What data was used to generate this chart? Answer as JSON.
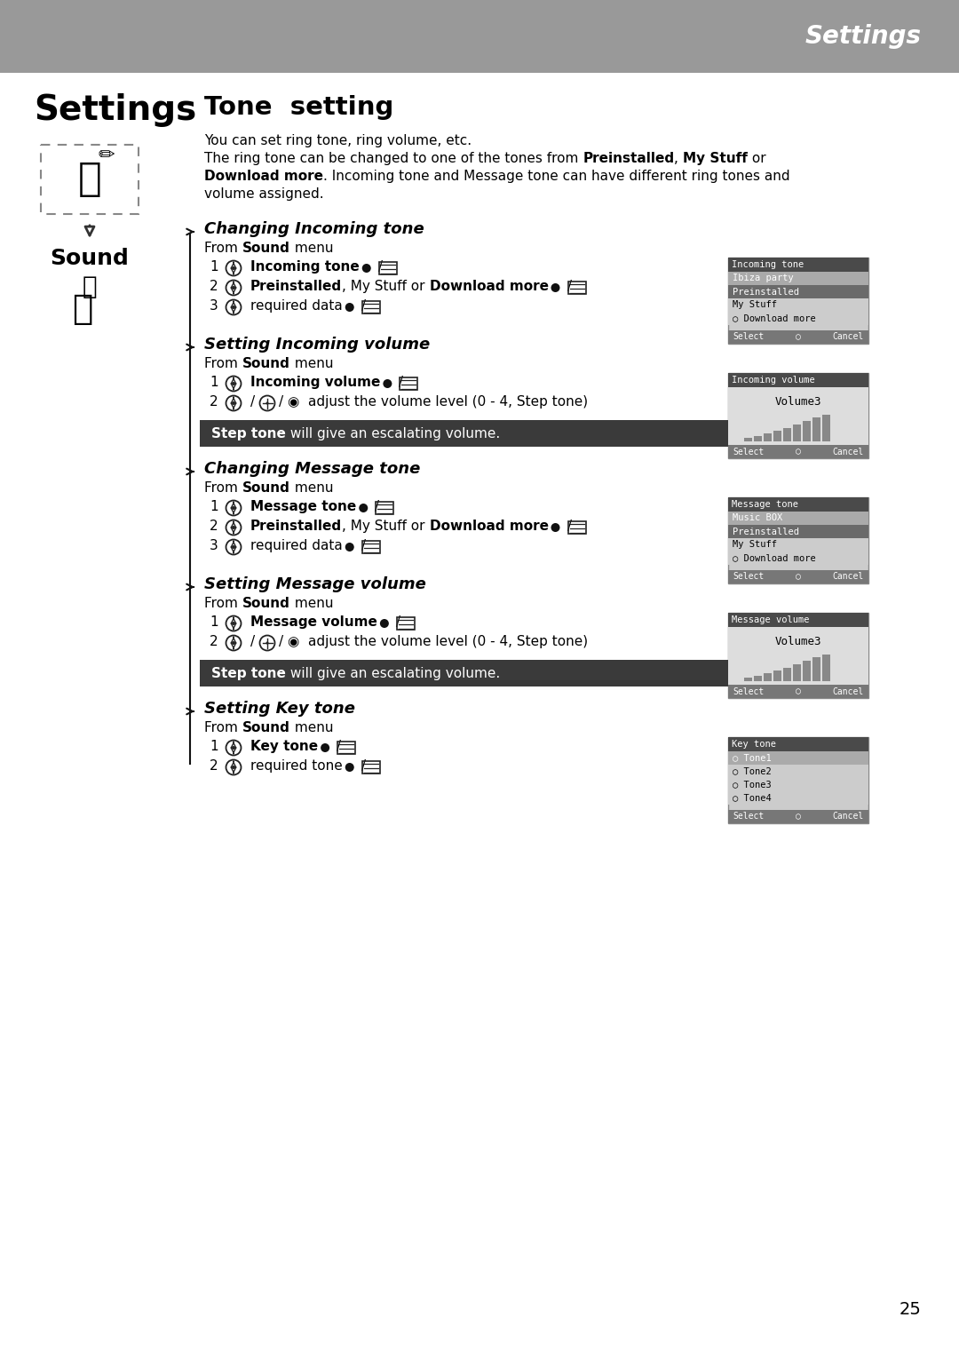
{
  "page_bg": "#ffffff",
  "header_bg": "#999999",
  "header_text": "Settings",
  "header_text_color": "#ffffff",
  "page_number": "25",
  "dark_note_bg": "#3a3a3a",
  "dark_note_text_color": "#ffffff",
  "note_bold": "Step tone",
  "note_rest": " will give an escalating volume.",
  "left_title": "Settings",
  "left_subtitle": "Sound",
  "main_heading": "Tone  setting",
  "sections": [
    {
      "heading": "Changing Incoming tone",
      "steps": [
        {
          "num": "1",
          "bold_label": "Incoming tone",
          "suffix": ""
        },
        {
          "num": "2",
          "bold_label": "Preinstalled",
          "extra": ", My Stuff or Download more",
          "extra_bold": [
            "My Stuff",
            "Download more"
          ],
          "suffix": ""
        },
        {
          "num": "3",
          "plain": "required data",
          "suffix": ""
        }
      ],
      "has_note": false,
      "screen": {
        "title": "Incoming tone",
        "title_bg": "#4a4a4a",
        "title_fg": "#ffffff",
        "type": "list",
        "rows": [
          {
            "text": "Ibiza party",
            "bg": "#aaaaaa",
            "fg": "#ffffff"
          },
          {
            "text": "Preinstalled",
            "bg": "#6a6a6a",
            "fg": "#ffffff"
          },
          {
            "text": "My Stuff",
            "bg": "#cccccc",
            "fg": "#000000"
          },
          {
            "text": "○ Download more",
            "bg": "#cccccc",
            "fg": "#000000"
          }
        ]
      }
    },
    {
      "heading": "Setting Incoming volume",
      "steps": [
        {
          "num": "1",
          "bold_label": "Incoming volume",
          "suffix": ""
        },
        {
          "num": "2",
          "plain": "/ ◉  adjust the volume level (0 - 4, Step tone)",
          "suffix": "",
          "two_nav": true
        }
      ],
      "has_note": true,
      "screen": {
        "title": "Incoming volume",
        "title_bg": "#4a4a4a",
        "title_fg": "#ffffff",
        "type": "volume",
        "center_text": "Volume3"
      }
    },
    {
      "heading": "Changing Message tone",
      "steps": [
        {
          "num": "1",
          "bold_label": "Message tone",
          "suffix": ""
        },
        {
          "num": "2",
          "bold_label": "Preinstalled",
          "extra": ", My Stuff or Download more",
          "extra_bold": [
            "My Stuff",
            "Download more"
          ],
          "suffix": ""
        },
        {
          "num": "3",
          "plain": "required data",
          "suffix": ""
        }
      ],
      "has_note": false,
      "screen": {
        "title": "Message tone",
        "title_bg": "#4a4a4a",
        "title_fg": "#ffffff",
        "type": "list",
        "rows": [
          {
            "text": "Music BOX",
            "bg": "#aaaaaa",
            "fg": "#ffffff"
          },
          {
            "text": "Preinstalled",
            "bg": "#6a6a6a",
            "fg": "#ffffff"
          },
          {
            "text": "My Stuff",
            "bg": "#cccccc",
            "fg": "#000000"
          },
          {
            "text": "○ Download more",
            "bg": "#cccccc",
            "fg": "#000000"
          }
        ]
      }
    },
    {
      "heading": "Setting Message volume",
      "steps": [
        {
          "num": "1",
          "bold_label": "Message volume",
          "suffix": ""
        },
        {
          "num": "2",
          "plain": "/ ◉  adjust the volume level (0 - 4, Step tone)",
          "suffix": "",
          "two_nav": true
        }
      ],
      "has_note": true,
      "screen": {
        "title": "Message volume",
        "title_bg": "#4a4a4a",
        "title_fg": "#ffffff",
        "type": "volume",
        "center_text": "Volume3"
      }
    },
    {
      "heading": "Setting Key tone",
      "steps": [
        {
          "num": "1",
          "bold_label": "Key tone",
          "suffix": ""
        },
        {
          "num": "2",
          "plain": "required tone",
          "suffix": ""
        }
      ],
      "has_note": false,
      "screen": {
        "title": "Key tone",
        "title_bg": "#4a4a4a",
        "title_fg": "#ffffff",
        "type": "list",
        "rows": [
          {
            "text": "○ Tone1",
            "bg": "#aaaaaa",
            "fg": "#ffffff"
          },
          {
            "text": "○ Tone2",
            "bg": "#cccccc",
            "fg": "#000000"
          },
          {
            "text": "○ Tone3",
            "bg": "#cccccc",
            "fg": "#000000"
          },
          {
            "text": "○ Tone4",
            "bg": "#cccccc",
            "fg": "#000000"
          }
        ]
      }
    }
  ]
}
